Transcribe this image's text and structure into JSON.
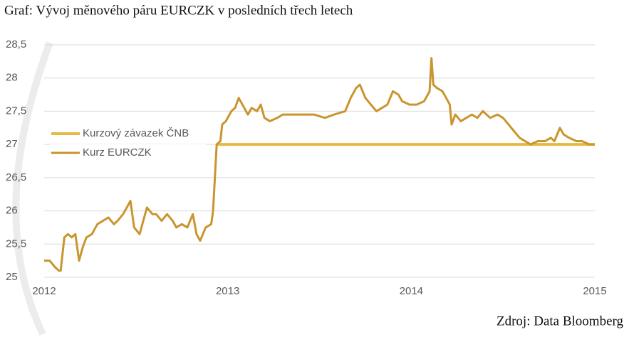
{
  "chart_data": {
    "type": "line",
    "title": "Graf: Vývoj měnového páru EURCZK v posledních třech letech",
    "source": "Zdroj: Data Bloomberg",
    "x": [
      2012.0,
      2012.03,
      2012.06,
      2012.08,
      2012.09,
      2012.11,
      2012.13,
      2012.15,
      2012.17,
      2012.19,
      2012.21,
      2012.23,
      2012.26,
      2012.29,
      2012.32,
      2012.35,
      2012.38,
      2012.4,
      2012.43,
      2012.45,
      2012.47,
      2012.49,
      2012.52,
      2012.54,
      2012.56,
      2012.59,
      2012.61,
      2012.64,
      2012.67,
      2012.7,
      2012.72,
      2012.75,
      2012.78,
      2012.81,
      2012.83,
      2012.85,
      2012.88,
      2012.91,
      2012.92,
      2012.94,
      2012.96,
      2012.97,
      2012.99,
      2013.02,
      2013.04,
      2013.06,
      2013.09,
      2013.11,
      2013.13,
      2013.16,
      2013.18,
      2013.2,
      2013.23,
      2013.27,
      2013.3,
      2013.35,
      2013.41,
      2013.47,
      2013.53,
      2013.58,
      2013.64,
      2013.67,
      2013.7,
      2013.72,
      2013.75,
      2013.78,
      2013.81,
      2013.84,
      2013.87,
      2013.9,
      2013.93,
      2013.95,
      2013.99,
      2014.03,
      2014.07,
      2014.1,
      2014.11,
      2014.12,
      2014.14,
      2014.17,
      2014.19,
      2014.21,
      2014.22,
      2014.24,
      2014.27,
      2014.3,
      2014.33,
      2014.36,
      2014.39,
      2014.43,
      2014.47,
      2014.5,
      2014.53,
      2014.56,
      2014.59,
      2014.62,
      2014.65,
      2014.69,
      2014.73,
      2014.76,
      2014.78,
      2014.81,
      2014.83,
      2014.86,
      2014.9,
      2014.93,
      2014.97,
      2015.0
    ],
    "series": [
      {
        "name": "Kurzový závazek ČNB",
        "color": "#e6b844",
        "width": 4,
        "values": [
          null,
          null,
          null,
          null,
          null,
          null,
          null,
          null,
          null,
          null,
          null,
          null,
          null,
          null,
          null,
          null,
          null,
          null,
          null,
          null,
          null,
          null,
          null,
          null,
          null,
          null,
          null,
          null,
          null,
          null,
          null,
          null,
          null,
          null,
          null,
          null,
          null,
          null,
          null,
          27,
          27,
          27,
          27,
          27,
          27,
          27,
          27,
          27,
          27,
          27,
          27,
          27,
          27,
          27,
          27,
          27,
          27,
          27,
          27,
          27,
          27,
          27,
          27,
          27,
          27,
          27,
          27,
          27,
          27,
          27,
          27,
          27,
          27,
          27,
          27,
          27,
          27,
          27,
          27,
          27,
          27,
          27,
          27,
          27,
          27,
          27,
          27,
          27,
          27,
          27,
          27,
          27,
          27,
          27,
          27,
          27,
          27,
          27,
          27,
          27,
          27,
          27,
          27,
          27,
          27,
          27,
          27,
          27
        ]
      },
      {
        "name": "Kurz EURCZK",
        "color": "#c9952e",
        "width": 3,
        "values": [
          25.25,
          25.25,
          25.15,
          25.1,
          25.1,
          25.6,
          25.65,
          25.6,
          25.65,
          25.25,
          25.45,
          25.6,
          25.65,
          25.8,
          25.85,
          25.9,
          25.8,
          25.85,
          25.95,
          26.05,
          26.15,
          25.75,
          25.65,
          25.85,
          26.05,
          25.95,
          25.95,
          25.85,
          25.95,
          25.85,
          25.75,
          25.8,
          25.75,
          25.95,
          25.65,
          25.55,
          25.75,
          25.8,
          26.0,
          27.0,
          27.05,
          27.3,
          27.35,
          27.5,
          27.55,
          27.7,
          27.55,
          27.45,
          27.55,
          27.5,
          27.6,
          27.4,
          27.35,
          27.4,
          27.45,
          27.45,
          27.45,
          27.45,
          27.4,
          27.45,
          27.5,
          27.7,
          27.85,
          27.9,
          27.7,
          27.6,
          27.5,
          27.55,
          27.6,
          27.8,
          27.75,
          27.65,
          27.6,
          27.6,
          27.65,
          27.8,
          28.3,
          27.9,
          27.85,
          27.8,
          27.7,
          27.6,
          27.3,
          27.45,
          27.35,
          27.4,
          27.45,
          27.4,
          27.5,
          27.4,
          27.45,
          27.4,
          27.3,
          27.2,
          27.1,
          27.05,
          27.0,
          27.05,
          27.05,
          27.1,
          27.05,
          27.25,
          27.15,
          27.1,
          27.05,
          27.05,
          27.0,
          27.0
        ]
      }
    ],
    "xlim": [
      2012,
      2015
    ],
    "xticks": [
      2012,
      2013,
      2014,
      2015
    ],
    "ylim": [
      25,
      28.5
    ],
    "yticks": [
      25,
      {
        "value": 25.5,
        "label": "25,5"
      },
      26,
      {
        "value": 26.5,
        "label": "26,5"
      },
      27,
      {
        "value": 27.5,
        "label": "27,5"
      },
      28,
      {
        "value": 28.5,
        "label": "28,5"
      }
    ],
    "grid": true,
    "legend": "left"
  }
}
